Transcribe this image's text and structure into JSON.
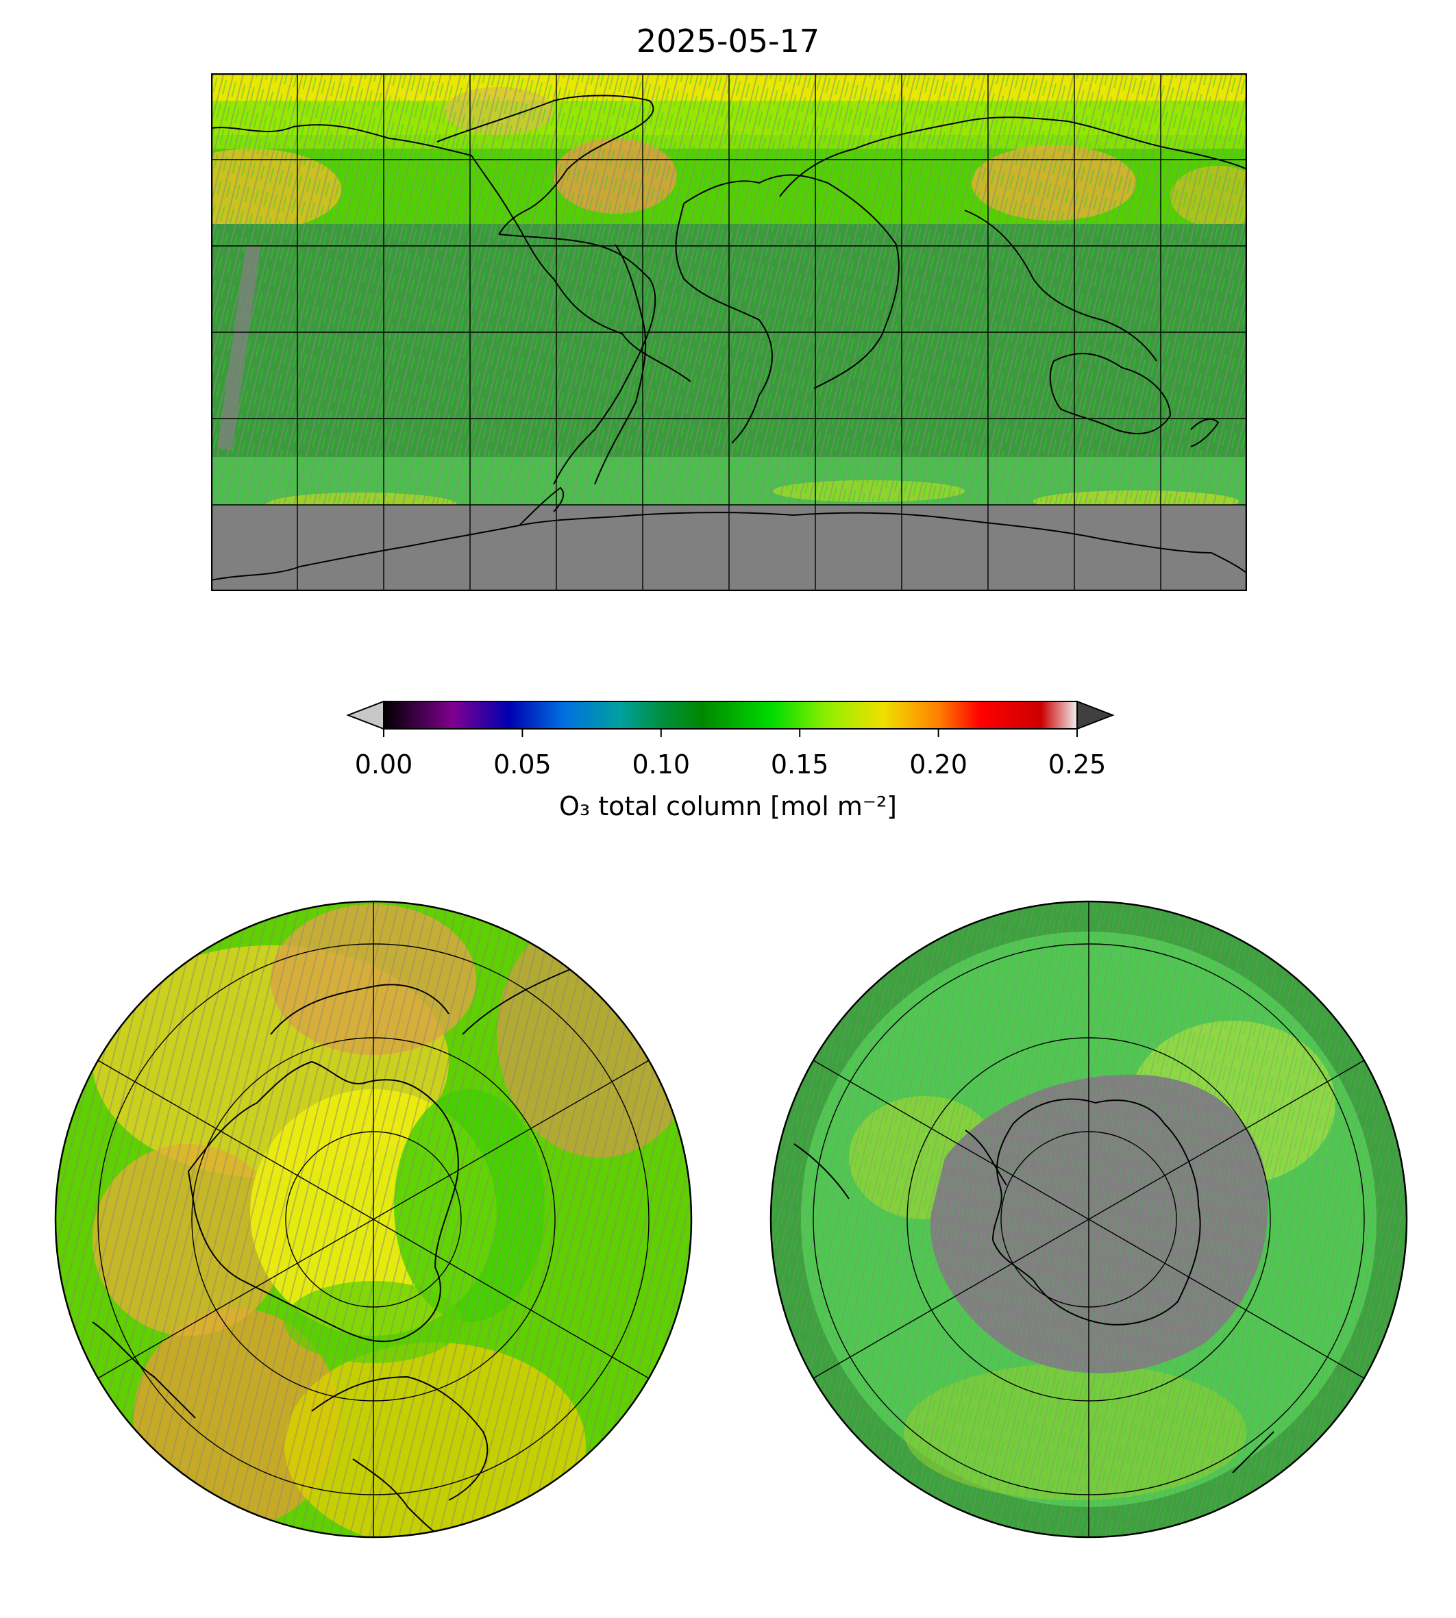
{
  "title": "2025-05-17",
  "colorbar": {
    "label": "O₃ total column [mol m⁻²]",
    "vmin": 0.0,
    "vmax": 0.25,
    "ticks": [
      "0.00",
      "0.05",
      "0.10",
      "0.15",
      "0.20",
      "0.25"
    ],
    "extend": "both",
    "under_color": "#c8c8c8",
    "over_color": "#404040",
    "stops": [
      {
        "value": 0.0,
        "color": "#000000"
      },
      {
        "value": 0.025,
        "color": "#800090"
      },
      {
        "value": 0.045,
        "color": "#0000b0"
      },
      {
        "value": 0.065,
        "color": "#0070e0"
      },
      {
        "value": 0.085,
        "color": "#00a0a0"
      },
      {
        "value": 0.1,
        "color": "#009040"
      },
      {
        "value": 0.115,
        "color": "#008800"
      },
      {
        "value": 0.14,
        "color": "#00dd00"
      },
      {
        "value": 0.16,
        "color": "#90ee00"
      },
      {
        "value": 0.18,
        "color": "#f0e000"
      },
      {
        "value": 0.2,
        "color": "#ff8000"
      },
      {
        "value": 0.215,
        "color": "#ff0000"
      },
      {
        "value": 0.237,
        "color": "#cc0000"
      },
      {
        "value": 0.25,
        "color": "#f0f0f0"
      }
    ]
  },
  "maps": {
    "global": {
      "projection": "plate-carree",
      "gridline_spacing_deg": 30,
      "missing_color": "#808080"
    },
    "north_polar": {
      "projection": "north-polar-stereographic"
    },
    "south_polar": {
      "projection": "south-polar-stereographic"
    }
  }
}
